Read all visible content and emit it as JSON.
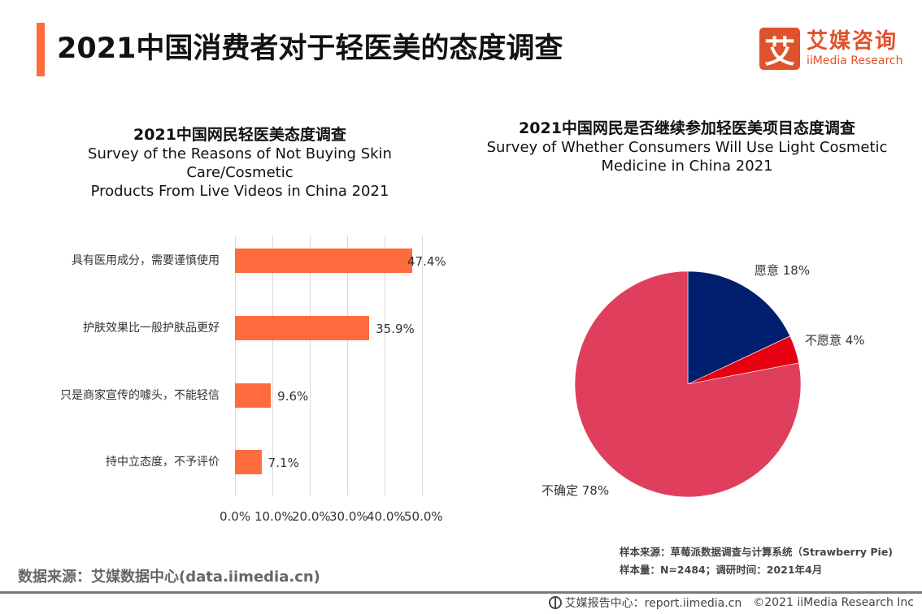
{
  "header": {
    "title": "2021中国消费者对于轻医美的态度调查",
    "accent_color": "#ff6b3d"
  },
  "logo": {
    "icon_glyph": "艾",
    "name_cn": "艾媒咨询",
    "name_en": "iiMedia Research",
    "color": "#e0522d"
  },
  "left_chart": {
    "title_cn": "2021中国网民轻医美态度调查",
    "title_en_line1": "Survey of the Reasons of Not Buying Skin Care/Cosmetic",
    "title_en_line2": "Products From Live Videos in China 2021"
  },
  "right_chart": {
    "title_cn": "2021中国网民是否继续参加轻医美项目态度调查",
    "title_en_line1": "Survey of Whether Consumers Will Use Light Cosmetic",
    "title_en_line2": "Medicine in China 2021"
  },
  "chart_data": [
    {
      "type": "bar",
      "orientation": "horizontal",
      "title": "2021中国网民轻医美态度调查",
      "subtitle": "Survey of the Reasons of Not Buying Skin Care/Cosmetic Products From Live Videos in China 2021",
      "categories": [
        "具有医用成分，需要谨慎使用",
        "护肤效果比一般护肤品更好",
        "只是商家宣传的噱头，不能轻信",
        "持中立态度，不予评价"
      ],
      "values": [
        47.4,
        35.9,
        9.6,
        7.1
      ],
      "value_labels": [
        "47.4%",
        "35.9%",
        "9.6%",
        "7.1%"
      ],
      "x_ticks": [
        "0.0%",
        "10.0%",
        "20.0%",
        "30.0%",
        "40.0%",
        "50.0%"
      ],
      "xlim": [
        0,
        50
      ],
      "xlabel": "",
      "ylabel": "",
      "grid": true,
      "bar_color": "#ff6b3d"
    },
    {
      "type": "pie",
      "title": "2021中国网民是否继续参加轻医美项目态度调查",
      "subtitle": "Survey of Whether Consumers Will Use Light Cosmetic Medicine in China 2021",
      "slices": [
        {
          "label": "愿意",
          "value": 18,
          "display": "愿意 18%",
          "color": "#001f6e"
        },
        {
          "label": "不愿意",
          "value": 4,
          "display": "不愿意 4%",
          "color": "#e60012"
        },
        {
          "label": "不确定",
          "value": 78,
          "display": "不确定 78%",
          "color": "#df3f5c"
        }
      ],
      "start_angle": "12 o'clock, clockwise"
    }
  ],
  "sample_info": {
    "source": "样本来源：草莓派数据调查与计算系统（Strawberry Pie)",
    "size": "样本量：N=2484；调研时间：2021年4月"
  },
  "footer": {
    "data_source": "数据来源：艾媒数据中心(data.iimedia.cn)",
    "report_center": "艾媒报告中心：report.iimedia.cn",
    "copyright": "©2021  iiMedia Research  Inc",
    "icon": "globe-cursor-icon"
  }
}
